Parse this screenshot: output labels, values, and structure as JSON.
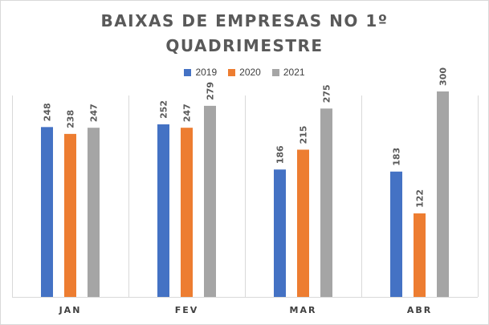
{
  "chart_data": {
    "type": "bar",
    "title_lines": [
      "BAIXAS DE EMPRESAS NO 1º",
      "QUADRIMESTRE"
    ],
    "categories": [
      "JAN",
      "FEV",
      "MAR",
      "ABR"
    ],
    "series": [
      {
        "name": "2019",
        "color": "#4472c4",
        "values": [
          248,
          252,
          186,
          183
        ]
      },
      {
        "name": "2020",
        "color": "#ed7d31",
        "values": [
          238,
          247,
          215,
          122
        ]
      },
      {
        "name": "2021",
        "color": "#a5a5a5",
        "values": [
          247,
          279,
          275,
          300
        ]
      }
    ],
    "ylim": [
      0,
      350
    ],
    "gridlines": "vertical category separators",
    "legend_position": "top",
    "data_labels": true
  }
}
